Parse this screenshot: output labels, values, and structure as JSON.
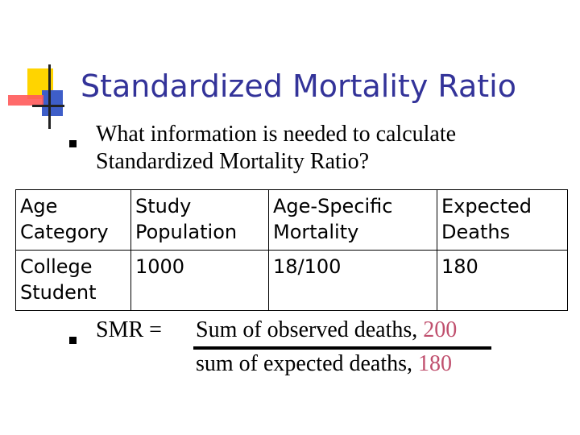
{
  "title": "Standardized Mortality Ratio",
  "question": "What information is needed to calculate Standardized Mortality Ratio?",
  "table": {
    "headers": [
      "Age Category",
      "Study Population",
      "Age-Specific Mortality",
      "Expected Deaths"
    ],
    "rows": [
      [
        "College Student",
        "1000",
        "18/100",
        "180"
      ]
    ]
  },
  "formula": {
    "label": "SMR  =",
    "numerator_text": "Sum of observed deaths, ",
    "numerator_value": "200",
    "denominator_text": "sum of expected deaths, ",
    "denominator_value": "180"
  },
  "colors": {
    "title": "#333399",
    "highlight": "#c0506e"
  }
}
